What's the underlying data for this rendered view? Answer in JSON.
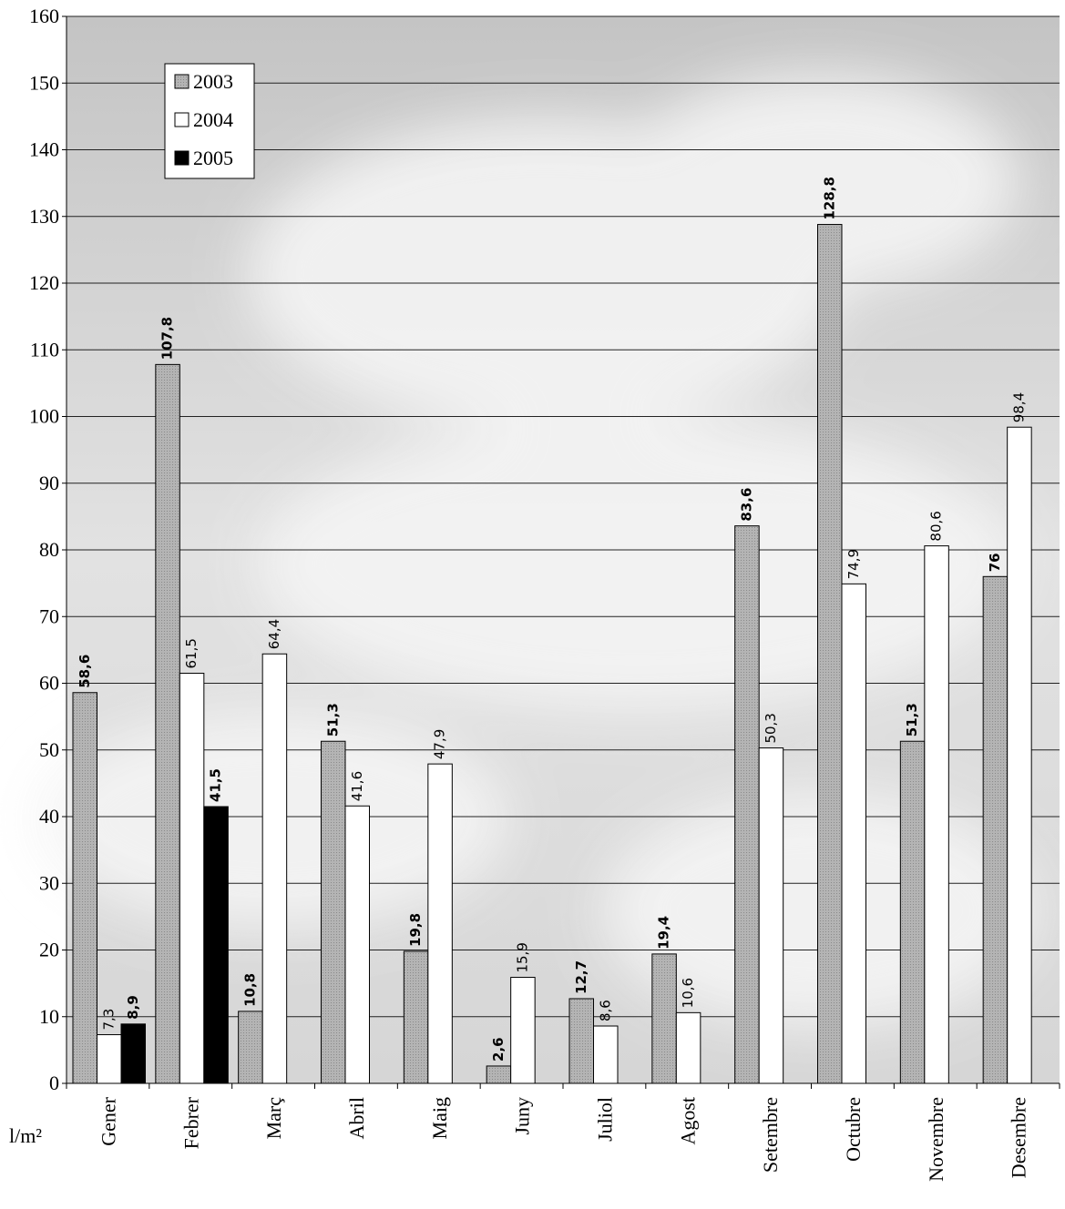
{
  "chart_data": {
    "type": "bar",
    "y_label": "l/m²",
    "categories": [
      "Gener",
      "Febrer",
      "Març",
      "Abril",
      "Maig",
      "Juny",
      "Juliol",
      "Agost",
      "Setembre",
      "Octubre",
      "Novembre",
      "Desembre"
    ],
    "series": [
      {
        "name": "2003",
        "color": "#a9a9a9",
        "values": [
          58.6,
          107.8,
          10.8,
          51.3,
          19.8,
          2.6,
          12.7,
          19.4,
          83.6,
          128.8,
          51.3,
          76
        ],
        "value_labels": [
          "58,6",
          "107,8",
          "10,8",
          "51,3",
          "19,8",
          "2,6",
          "12,7",
          "19,4",
          "83,6",
          "128,8",
          "51,3",
          "76"
        ]
      },
      {
        "name": "2004",
        "color": "#ffffff",
        "values": [
          7.3,
          61.5,
          64.4,
          41.6,
          47.9,
          15.9,
          8.6,
          10.6,
          50.3,
          74.9,
          80.6,
          98.4
        ],
        "value_labels": [
          "7,3",
          "61,5",
          "64,4",
          "41,6",
          "47,9",
          "15,9",
          "8,6",
          "10,6",
          "50,3",
          "74,9",
          "80,6",
          "98,4"
        ]
      },
      {
        "name": "2005",
        "color": "#000000",
        "values": [
          8.9,
          41.5,
          null,
          null,
          null,
          null,
          null,
          null,
          null,
          null,
          null,
          null
        ],
        "value_labels": [
          "8,9",
          "41,5",
          null,
          null,
          null,
          null,
          null,
          null,
          null,
          null,
          null,
          null
        ]
      }
    ],
    "ylim": [
      0,
      160
    ],
    "yticks": [
      0,
      10,
      20,
      30,
      40,
      50,
      60,
      70,
      80,
      90,
      100,
      110,
      120,
      130,
      140,
      150,
      160
    ],
    "grid": true,
    "legend": "top-left"
  }
}
